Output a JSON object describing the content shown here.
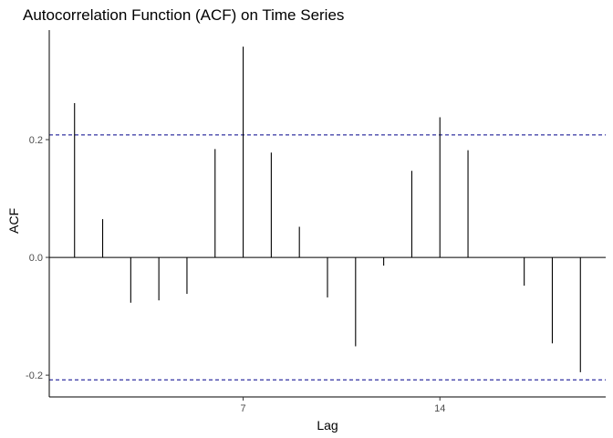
{
  "chart_data": {
    "type": "bar",
    "subtype": "acf-stem",
    "title": "Autocorrelation Function (ACF) on Time Series",
    "xlabel": "Lag",
    "ylabel": "ACF",
    "x": [
      1,
      2,
      3,
      4,
      5,
      6,
      7,
      8,
      9,
      10,
      11,
      12,
      13,
      14,
      15,
      16,
      17,
      18,
      19
    ],
    "values": [
      0.262,
      0.065,
      -0.077,
      -0.073,
      -0.062,
      0.184,
      0.358,
      0.178,
      0.052,
      -0.068,
      -0.151,
      -0.014,
      0.147,
      0.238,
      0.182,
      0.0,
      -0.048,
      -0.146,
      -0.195
    ],
    "confidence_bound": 0.208,
    "xlim": [
      0.1,
      19.9
    ],
    "ylim": [
      -0.237,
      0.386
    ],
    "x_ticks": [
      7,
      14
    ],
    "x_tick_labels": [
      "7",
      "14"
    ],
    "y_ticks": [
      -0.2,
      0.0,
      0.2
    ],
    "y_tick_labels": [
      "-0.2",
      "0.0",
      "0.2"
    ],
    "grid": false,
    "legend": "none",
    "colors": {
      "stem": "#000000",
      "zero_line": "#000000",
      "confidence_line": "#00008B",
      "axis": "#000000",
      "tick_label": "#4d4d4d"
    }
  }
}
